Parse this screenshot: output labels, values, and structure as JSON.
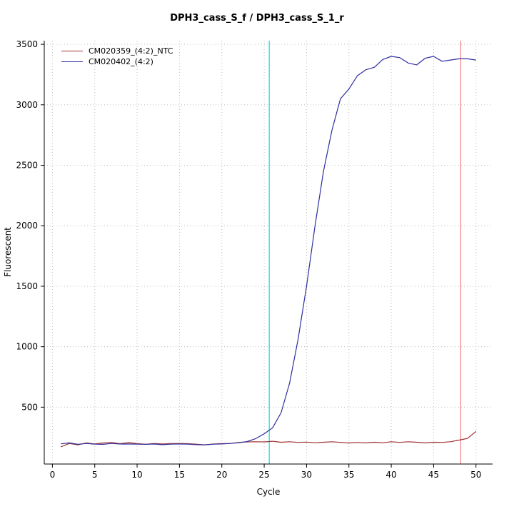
{
  "chart_data": {
    "type": "line",
    "title": "DPH3_cass_S_f / DPH3_cass_S_1_r",
    "xlabel": "Cycle",
    "ylabel": "Fluorescent",
    "xlim": [
      -0.96,
      51.96
    ],
    "ylim": [
      30,
      3530
    ],
    "x_ticks": [
      0,
      5,
      10,
      15,
      20,
      25,
      30,
      35,
      40,
      45,
      50
    ],
    "y_ticks": [
      500,
      1000,
      1500,
      2000,
      2500,
      3000,
      3500
    ],
    "grid": true,
    "grid_style": "dotted",
    "grid_color": "#bdbdbd",
    "legend_position": "top-left",
    "x": [
      1,
      2,
      3,
      4,
      5,
      6,
      7,
      8,
      9,
      10,
      11,
      12,
      13,
      14,
      15,
      16,
      17,
      18,
      19,
      20,
      21,
      22,
      23,
      24,
      25,
      26,
      27,
      28,
      29,
      30,
      31,
      32,
      33,
      34,
      35,
      36,
      37,
      38,
      39,
      40,
      41,
      42,
      43,
      44,
      45,
      46,
      47,
      48,
      49,
      50
    ],
    "series": [
      {
        "name": "CM020359_(4:2)_NTC",
        "color": "#a03232",
        "values": [
          172,
          200,
          188,
          205,
          196,
          204,
          208,
          198,
          207,
          199,
          193,
          200,
          196,
          199,
          200,
          198,
          194,
          189,
          195,
          199,
          200,
          209,
          213,
          214,
          213,
          218,
          210,
          214,
          209,
          211,
          206,
          210,
          214,
          209,
          204,
          209,
          205,
          210,
          206,
          214,
          209,
          214,
          210,
          205,
          210,
          209,
          214,
          228,
          242,
          300
        ]
      },
      {
        "name": "CM020402_(4:2)",
        "color": "#2e2e9e",
        "values": [
          197,
          205,
          193,
          200,
          194,
          193,
          200,
          195,
          196,
          194,
          193,
          195,
          190,
          194,
          196,
          194,
          190,
          189,
          194,
          196,
          200,
          206,
          216,
          240,
          280,
          330,
          455,
          700,
          1060,
          1500,
          2000,
          2450,
          2790,
          3050,
          3130,
          3240,
          3290,
          3310,
          3375,
          3400,
          3390,
          3345,
          3330,
          3385,
          3400,
          3360,
          3370,
          3380,
          3380,
          3370
        ]
      }
    ],
    "vlines": [
      {
        "x": 25.6,
        "color": "#00e5ee",
        "name": "threshold-cycle-line"
      },
      {
        "x": 48.2,
        "color": "#f08080",
        "name": "end-cycle-line"
      }
    ]
  }
}
